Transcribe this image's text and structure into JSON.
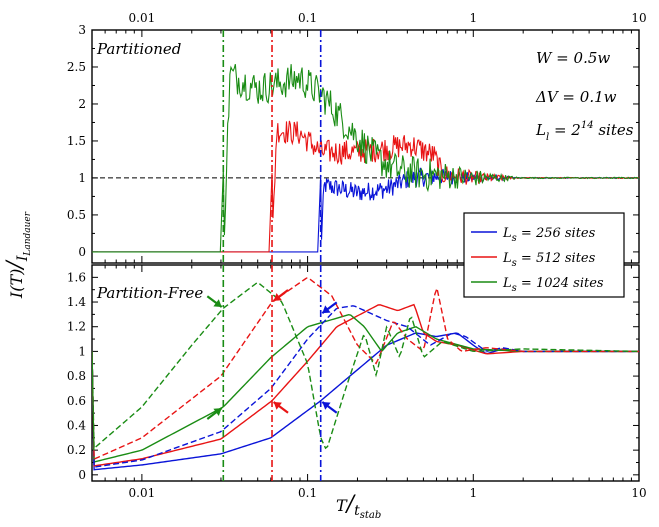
{
  "chart_data": {
    "type": "line",
    "x_scale": "log",
    "xlim": [
      0.005,
      10
    ],
    "x_ticks": [
      0.01,
      0.1,
      1,
      10
    ],
    "x_tick_labels": [
      "0.01",
      "0.1",
      "1",
      "10"
    ],
    "y_label": {
      "main": "I(T)",
      "sep": "/",
      "sub": "I",
      "subsub": "Landauer"
    },
    "x_label": {
      "main": "T",
      "sep": "/",
      "sub": "t",
      "subsub": "stab"
    },
    "legend": {
      "placement": "right-middle",
      "entries": [
        {
          "name": "L",
          "sub": "s",
          "suffix": " = 256 sites",
          "color": "#0a14d8"
        },
        {
          "name": "L",
          "sub": "s",
          "suffix": " = 512 sites",
          "color": "#e81414"
        },
        {
          "name": "L",
          "sub": "s",
          "suffix": " = 1024 sites",
          "color": "#1a8c14"
        }
      ]
    },
    "annotations": {
      "W": "W = 0.5w",
      "dV": "ΔV = 0.1w",
      "Ll_pre": "L",
      "Ll_sub": "l",
      "Ll_mid": " = 2",
      "Ll_exp": "14",
      "Ll_post": " sites"
    },
    "panels": [
      {
        "label": "Partitioned",
        "ylim": [
          -0.15,
          3
        ],
        "y_ticks": [
          0,
          0.5,
          1,
          1.5,
          2,
          2.5,
          3
        ],
        "y_tick_labels": [
          "0",
          "0.5",
          "1",
          "1.5",
          "2",
          "2.5",
          "3"
        ],
        "reference_line": 1,
        "vlines": [
          0.031,
          0.061,
          0.12
        ],
        "series": [
          {
            "color": "#0a14d8",
            "onset": 0.12,
            "keypoints": [
              [
                0.12,
                0
              ],
              [
                0.126,
                0.9
              ],
              [
                0.2,
                0.8
              ],
              [
                0.3,
                0.85
              ],
              [
                0.42,
                1.0
              ],
              [
                0.6,
                1.02
              ],
              [
                1,
                1.0
              ],
              [
                10,
                1.0
              ]
            ],
            "noise": 0.13
          },
          {
            "color": "#e81414",
            "onset": 0.061,
            "keypoints": [
              [
                0.061,
                0
              ],
              [
                0.065,
                1.65
              ],
              [
                0.09,
                1.6
              ],
              [
                0.12,
                1.35
              ],
              [
                0.2,
                1.35
              ],
              [
                0.3,
                1.4
              ],
              [
                0.42,
                1.45
              ],
              [
                0.58,
                1.3
              ],
              [
                0.65,
                1.05
              ],
              [
                1,
                1.0
              ],
              [
                10,
                1.0
              ]
            ],
            "noise": 0.17
          },
          {
            "color": "#1a8c14",
            "onset": 0.031,
            "keypoints": [
              [
                0.031,
                0
              ],
              [
                0.034,
                2.4
              ],
              [
                0.05,
                2.2
              ],
              [
                0.09,
                2.35
              ],
              [
                0.125,
                2.1
              ],
              [
                0.16,
                1.8
              ],
              [
                0.25,
                1.3
              ],
              [
                0.35,
                1.1
              ],
              [
                0.5,
                1.05
              ],
              [
                1,
                1.0
              ],
              [
                10,
                1.0
              ]
            ],
            "noise": 0.23
          }
        ]
      },
      {
        "label": "Partition-Free",
        "ylim": [
          -0.05,
          1.7
        ],
        "y_ticks": [
          0,
          0.2,
          0.4,
          0.6,
          0.8,
          1,
          1.2,
          1.4,
          1.6
        ],
        "y_tick_labels": [
          "0",
          "0.2",
          "0.4",
          "0.6",
          "0.8",
          "1",
          "1.2",
          "1.4",
          "1.6"
        ],
        "vlines": [
          0.031,
          0.061,
          0.12
        ],
        "series": [
          {
            "name": "Ls = 256 solid",
            "color": "#0a14d8",
            "dash": false,
            "points": [
              [
                0.005,
                0.04
              ],
              [
                0.01,
                0.08
              ],
              [
                0.03,
                0.17
              ],
              [
                0.06,
                0.3
              ],
              [
                0.12,
                0.6
              ],
              [
                0.18,
                0.8
              ],
              [
                0.3,
                1.05
              ],
              [
                0.45,
                1.15
              ],
              [
                0.6,
                1.12
              ],
              [
                0.8,
                1.15
              ],
              [
                1,
                1.05
              ],
              [
                1.2,
                0.98
              ],
              [
                1.5,
                1.02
              ],
              [
                2,
                1.0
              ],
              [
                10,
                1.0
              ]
            ]
          },
          {
            "name": "Ls = 512 solid",
            "color": "#e81414",
            "dash": false,
            "points": [
              [
                0.005,
                0.07
              ],
              [
                0.01,
                0.13
              ],
              [
                0.03,
                0.29
              ],
              [
                0.061,
                0.6
              ],
              [
                0.1,
                0.92
              ],
              [
                0.15,
                1.2
              ],
              [
                0.27,
                1.38
              ],
              [
                0.35,
                1.33
              ],
              [
                0.44,
                1.38
              ],
              [
                0.5,
                1.15
              ],
              [
                0.6,
                1.08
              ],
              [
                0.8,
                1.05
              ],
              [
                1.2,
                0.98
              ],
              [
                2,
                1.0
              ],
              [
                10,
                1.0
              ]
            ]
          },
          {
            "name": "Ls = 1024 solid",
            "color": "#1a8c14",
            "dash": false,
            "points": [
              [
                0.005,
                0.1
              ],
              [
                0.01,
                0.2
              ],
              [
                0.031,
                0.55
              ],
              [
                0.06,
                0.95
              ],
              [
                0.1,
                1.2
              ],
              [
                0.18,
                1.3
              ],
              [
                0.22,
                1.2
              ],
              [
                0.28,
                1.0
              ],
              [
                0.35,
                1.15
              ],
              [
                0.45,
                1.2
              ],
              [
                0.6,
                1.1
              ],
              [
                1,
                1.02
              ],
              [
                2,
                1.0
              ],
              [
                10,
                1.0
              ]
            ]
          },
          {
            "name": "Ls = 256 dashed",
            "color": "#0a14d8",
            "dash": true,
            "points": [
              [
                0.005,
                0.06
              ],
              [
                0.01,
                0.12
              ],
              [
                0.03,
                0.35
              ],
              [
                0.06,
                0.7
              ],
              [
                0.1,
                1.1
              ],
              [
                0.15,
                1.35
              ],
              [
                0.19,
                1.37
              ],
              [
                0.3,
                1.25
              ],
              [
                0.4,
                1.2
              ],
              [
                0.55,
                1.05
              ],
              [
                0.75,
                1.15
              ],
              [
                0.9,
                1.12
              ],
              [
                1.2,
                1.0
              ],
              [
                1.5,
                1.03
              ],
              [
                2,
                1.0
              ],
              [
                10,
                1.0
              ]
            ]
          },
          {
            "name": "Ls = 512 dashed",
            "color": "#e81414",
            "dash": true,
            "points": [
              [
                0.005,
                0.12
              ],
              [
                0.01,
                0.3
              ],
              [
                0.03,
                0.8
              ],
              [
                0.061,
                1.4
              ],
              [
                0.1,
                1.6
              ],
              [
                0.14,
                1.45
              ],
              [
                0.2,
                1.05
              ],
              [
                0.26,
                0.9
              ],
              [
                0.33,
                1.25
              ],
              [
                0.4,
                1.1
              ],
              [
                0.5,
                1.0
              ],
              [
                0.6,
                1.53
              ],
              [
                0.7,
                1.1
              ],
              [
                0.85,
                1.0
              ],
              [
                1.2,
                1.03
              ],
              [
                2,
                1.0
              ],
              [
                10,
                1.0
              ]
            ]
          },
          {
            "name": "Ls = 1024 dashed",
            "color": "#1a8c14",
            "dash": true,
            "points": [
              [
                0.005,
                0.2
              ],
              [
                0.01,
                0.55
              ],
              [
                0.02,
                1.05
              ],
              [
                0.031,
                1.35
              ],
              [
                0.05,
                1.56
              ],
              [
                0.07,
                1.4
              ],
              [
                0.1,
                0.9
              ],
              [
                0.12,
                0.3
              ],
              [
                0.13,
                0.2
              ],
              [
                0.17,
                0.7
              ],
              [
                0.22,
                1.15
              ],
              [
                0.26,
                0.8
              ],
              [
                0.3,
                1.2
              ],
              [
                0.36,
                0.95
              ],
              [
                0.42,
                1.3
              ],
              [
                0.5,
                0.95
              ],
              [
                0.65,
                1.08
              ],
              [
                1,
                1.0
              ],
              [
                2,
                1.02
              ],
              [
                10,
                1.0
              ]
            ]
          }
        ],
        "arrows": [
          {
            "color": "#1a8c14",
            "x": 0.031,
            "y": 1.35,
            "dir": "up-left"
          },
          {
            "color": "#1a8c14",
            "x": 0.031,
            "y": 0.55,
            "dir": "down-left"
          },
          {
            "color": "#e81414",
            "x": 0.061,
            "y": 1.4,
            "dir": "up-right"
          },
          {
            "color": "#e81414",
            "x": 0.061,
            "y": 0.6,
            "dir": "down-right"
          },
          {
            "color": "#0a14d8",
            "x": 0.12,
            "y": 1.3,
            "dir": "up-right"
          },
          {
            "color": "#0a14d8",
            "x": 0.12,
            "y": 0.6,
            "dir": "down-right"
          }
        ]
      }
    ]
  }
}
